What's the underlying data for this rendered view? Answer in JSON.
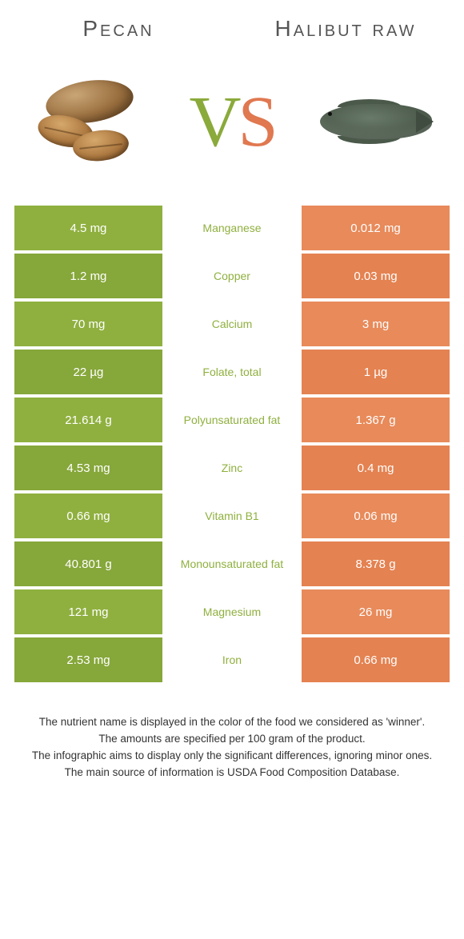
{
  "header": {
    "left_title": "Pecan",
    "right_title": "Halibut raw",
    "vs_v": "V",
    "vs_s": "S"
  },
  "colors": {
    "left_bg": "#8fb03f",
    "left_bg_alt": "#86a73a",
    "right_bg": "#e88a5a",
    "right_bg_alt": "#e48251",
    "mid_text_winner_left": "#8fb03f",
    "mid_text_winner_right": "#e88a5a"
  },
  "rows": [
    {
      "nutrient": "Manganese",
      "left": "4.5 mg",
      "right": "0.012 mg",
      "winner": "left"
    },
    {
      "nutrient": "Copper",
      "left": "1.2 mg",
      "right": "0.03 mg",
      "winner": "left"
    },
    {
      "nutrient": "Calcium",
      "left": "70 mg",
      "right": "3 mg",
      "winner": "left"
    },
    {
      "nutrient": "Folate, total",
      "left": "22 µg",
      "right": "1 µg",
      "winner": "left"
    },
    {
      "nutrient": "Polyunsaturated fat",
      "left": "21.614 g",
      "right": "1.367 g",
      "winner": "left"
    },
    {
      "nutrient": "Zinc",
      "left": "4.53 mg",
      "right": "0.4 mg",
      "winner": "left"
    },
    {
      "nutrient": "Vitamin B1",
      "left": "0.66 mg",
      "right": "0.06 mg",
      "winner": "left"
    },
    {
      "nutrient": "Monounsaturated fat",
      "left": "40.801 g",
      "right": "8.378 g",
      "winner": "left"
    },
    {
      "nutrient": "Magnesium",
      "left": "121 mg",
      "right": "26 mg",
      "winner": "left"
    },
    {
      "nutrient": "Iron",
      "left": "2.53 mg",
      "right": "0.66 mg",
      "winner": "left"
    }
  ],
  "footnotes": [
    "The nutrient name is displayed in the color of the food we considered as 'winner'.",
    "The amounts are specified per 100 gram of the product.",
    "The infographic aims to display only the significant differences, ignoring minor ones.",
    "The main source of information is USDA Food Composition Database."
  ]
}
